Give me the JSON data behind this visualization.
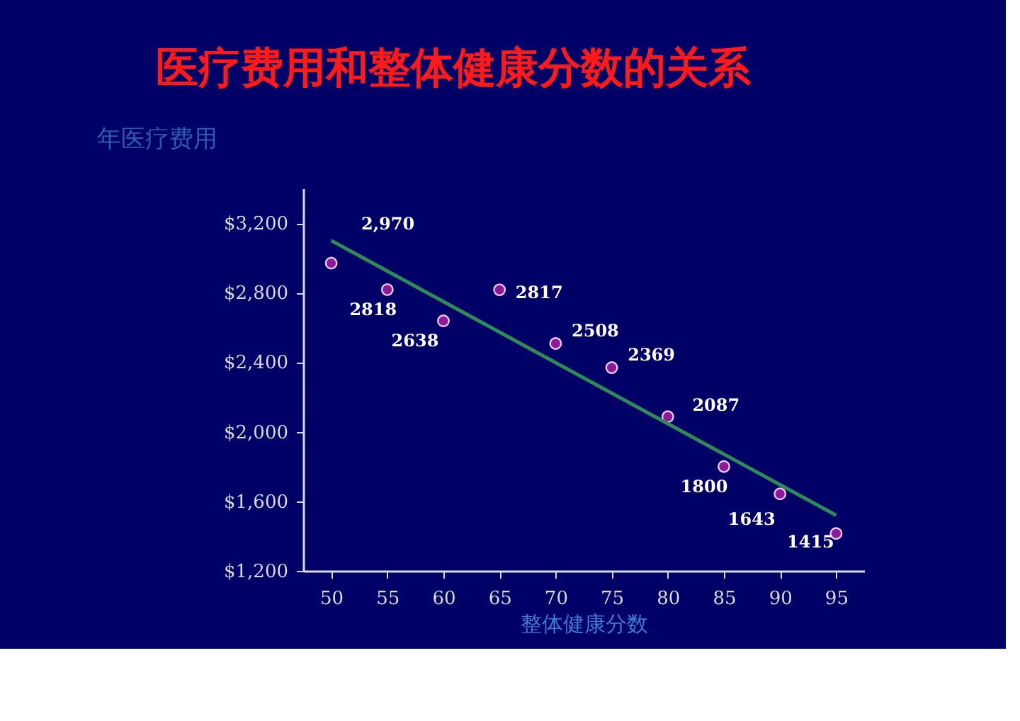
{
  "chart_data": {
    "type": "scatter",
    "title": "医疗费用和整体健康分数的关系",
    "xlabel": "整体健康分数",
    "ylabel": "年医疗费用",
    "categories": [
      "50",
      "55",
      "60",
      "65",
      "70",
      "75",
      "80",
      "85",
      "90",
      "95"
    ],
    "series": [
      {
        "marker": "circle",
        "color": "#8b1a9b",
        "values": [
          2970,
          2818,
          2638,
          2817,
          2508,
          2369,
          2087,
          1800,
          1643,
          1415
        ],
        "value_labels": [
          "2,970",
          "2818",
          "2638",
          "2817",
          "2508",
          "2369",
          "2087",
          "1800",
          "1643",
          "1415"
        ]
      },
      {
        "type": "line",
        "marker": "none",
        "line_style": "solid",
        "color": "#2e8b57",
        "x": [
          "50",
          "95"
        ],
        "values": [
          3100,
          1520
        ]
      }
    ],
    "ylim": [
      1200,
      3400
    ],
    "yticks": [
      {
        "value": 1200,
        "label": "$1,200"
      },
      {
        "value": 1600,
        "label": "$1,600"
      },
      {
        "value": 2000,
        "label": "$2,000"
      },
      {
        "value": 2400,
        "label": "$2,400"
      },
      {
        "value": 2800,
        "label": "$2,800"
      },
      {
        "value": 3200,
        "label": "$3,200"
      }
    ],
    "grid": false
  }
}
